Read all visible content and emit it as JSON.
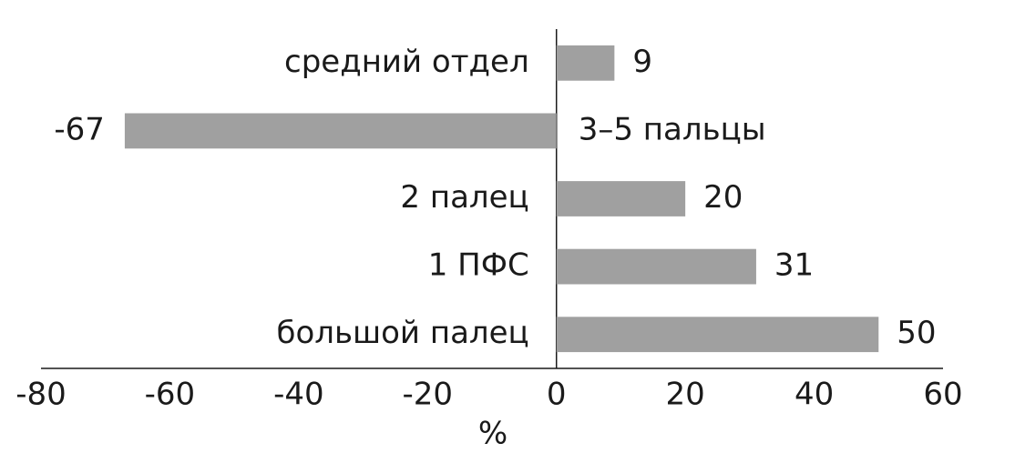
{
  "chart_data": {
    "type": "bar",
    "orientation": "horizontal",
    "categories": [
      "средний отдел",
      "3–5 пальцы",
      "2 палец",
      "1 ПФС",
      "большой палец"
    ],
    "values": [
      9,
      -67,
      20,
      31,
      50
    ],
    "color": "#a0a0a0",
    "xlabel": "%",
    "xlim": [
      -80,
      60
    ],
    "xticks": [
      -80,
      -60,
      -40,
      -20,
      0,
      20,
      40,
      60
    ]
  }
}
